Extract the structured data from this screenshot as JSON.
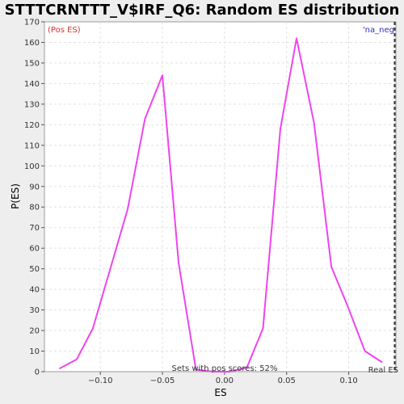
{
  "chart_data": {
    "type": "line",
    "title": "STTTCRNTTT_V$IRF_Q6: Random ES distribution",
    "xlabel": "ES",
    "ylabel": "P(ES)",
    "xlim": [
      -0.145,
      0.138
    ],
    "ylim": [
      0,
      170
    ],
    "x_ticks": [
      -0.1,
      -0.05,
      0.0,
      0.05,
      0.1
    ],
    "x_tick_labels": [
      "−0.10",
      "−0.05",
      "0.00",
      "0.05",
      "0.10"
    ],
    "y_ticks": [
      0,
      10,
      20,
      30,
      40,
      50,
      60,
      70,
      80,
      90,
      100,
      110,
      120,
      130,
      140,
      150,
      160,
      170
    ],
    "grid": true,
    "series": [
      {
        "color": "#ee44ee",
        "x": [
          -0.133,
          -0.119,
          -0.106,
          -0.092,
          -0.078,
          -0.064,
          -0.05,
          -0.037,
          -0.023,
          -0.009,
          0.004,
          0.018,
          0.031,
          0.045,
          0.058,
          0.072,
          0.086,
          0.099,
          0.113,
          0.127
        ],
        "y": [
          1.5,
          6,
          21,
          50,
          79,
          123,
          144,
          53,
          1,
          0,
          0,
          2,
          21,
          118,
          162,
          121,
          51,
          32,
          10,
          4.5
        ]
      }
    ],
    "marker_line": {
      "x": 0.137,
      "label": "Real ES"
    },
    "annotations": {
      "pos_label": "(Pos ES)",
      "neg_label": "'na_neg",
      "footer": "Sets with pos scores: 52%",
      "real_es": "Real ES"
    },
    "colors": {
      "background": "#eeeeee",
      "plot_background": "#ffffff",
      "grid": "#e0e0e0",
      "series": "#ee44ee",
      "pos_label": "#e03030",
      "neg_label": "#3030c0"
    }
  }
}
